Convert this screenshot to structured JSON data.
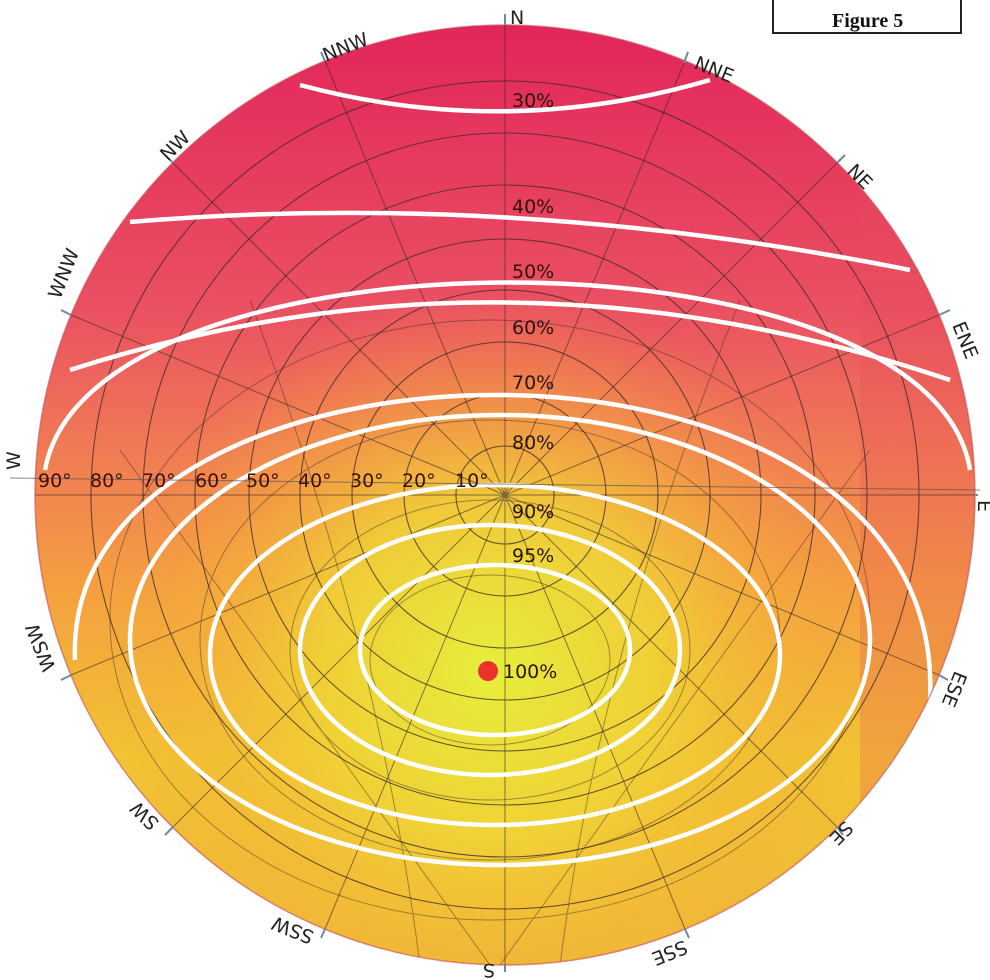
{
  "figure": {
    "label": "Figure 5"
  },
  "compass": {
    "N": "N",
    "NNE": "NNE",
    "NE": "NE",
    "ENE": "ENE",
    "E": "E",
    "ESE": "ESE",
    "SE": "SE",
    "SSE": "SSE",
    "S": "S",
    "SSW": "SSW",
    "SW": "SW",
    "WSW": "WSW",
    "W": "W",
    "WNW": "WNW",
    "NW": "NW",
    "NNW": "NNW"
  },
  "angles": [
    "90°",
    "80°",
    "70°",
    "60°",
    "50°",
    "40°",
    "30°",
    "20°",
    "10°"
  ],
  "contours": [
    "30%",
    "40%",
    "50%",
    "60%",
    "70%",
    "80%",
    "90%",
    "95%",
    "100%"
  ],
  "colors": {
    "top": "#e0265a",
    "mid": "#f07a4a",
    "center": "#e8ec3a",
    "contour": "#ffffff",
    "grid": "#3a2a2a",
    "marker": "#e8322a"
  }
}
